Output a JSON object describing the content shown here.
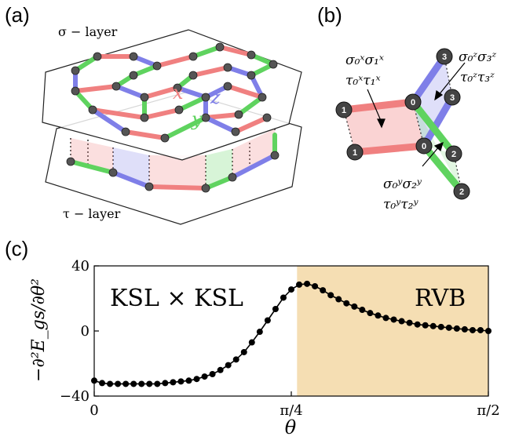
{
  "panels": {
    "a": {
      "label": "(a)",
      "sigma_layer": "σ − layer",
      "tau_layer": "τ − layer",
      "bond_labels": {
        "x": "x",
        "y": "y",
        "z": "z"
      }
    },
    "b": {
      "label": "(b)",
      "site_labels": [
        "0",
        "0",
        "1",
        "1",
        "2",
        "2",
        "3",
        "3"
      ],
      "term_x": {
        "line1": "σ₀ˣσ₁ˣ",
        "line2": "τ₀ˣτ₁ˣ"
      },
      "term_z": {
        "line1": "σ₀ᶻσ₃ᶻ",
        "line2": "τ₀ᶻτ₃ᶻ"
      },
      "term_y": {
        "line1": "σ₀ʸσ₂ʸ",
        "line2": "τ₀ʸτ₂ʸ"
      }
    },
    "c": {
      "label": "(c)",
      "ylabel": "−∂²E_gs/∂θ²",
      "xlabel": "θ",
      "region_left_label": "KSL × KSL",
      "region_right_label": "RVB"
    }
  },
  "colors": {
    "x_bond": "#f08080",
    "y_bond": "#5fd35f",
    "z_bond": "#7f7fe8",
    "site": "#555555",
    "rvb_region": "#f5deb3",
    "curve": "#000000"
  },
  "chart_data": {
    "type": "line",
    "xlabel": "θ",
    "ylabel": "−∂²E_gs/∂θ²",
    "xlim": [
      0,
      1.5708
    ],
    "ylim": [
      -40,
      40
    ],
    "xticks": [
      {
        "value": 0,
        "label": "0"
      },
      {
        "value": 0.7854,
        "label": "π/4"
      },
      {
        "value": 1.5708,
        "label": "π/2"
      }
    ],
    "yticks": [
      {
        "value": -40,
        "label": "−40"
      },
      {
        "value": 0,
        "label": "0"
      },
      {
        "value": 40,
        "label": "40"
      }
    ],
    "shaded_region": {
      "x_from": 0.8083,
      "x_to": 1.5708
    },
    "x": [
      0.0,
      0.0314,
      0.0628,
      0.0942,
      0.1257,
      0.1571,
      0.1885,
      0.2199,
      0.2513,
      0.2827,
      0.3142,
      0.3456,
      0.377,
      0.4084,
      0.4398,
      0.4712,
      0.5027,
      0.5341,
      0.5655,
      0.5969,
      0.6283,
      0.6597,
      0.6912,
      0.7226,
      0.754,
      0.7854,
      0.8168,
      0.8482,
      0.8796,
      0.9111,
      0.9425,
      0.9739,
      1.0053,
      1.0367,
      1.0681,
      1.0996,
      1.131,
      1.1624,
      1.1938,
      1.2252,
      1.2566,
      1.2881,
      1.3195,
      1.3509,
      1.3823,
      1.4137,
      1.4451,
      1.4765,
      1.508,
      1.5394,
      1.5708
    ],
    "y": [
      -30.5,
      -32.0,
      -32.5,
      -32.5,
      -32.5,
      -32.5,
      -32.5,
      -32.5,
      -32.5,
      -32.0,
      -31.5,
      -31.0,
      -30.5,
      -29.5,
      -28.0,
      -26.5,
      -24.0,
      -21.0,
      -17.5,
      -13.0,
      -7.0,
      -0.5,
      6.5,
      13.5,
      20.5,
      25.5,
      28.5,
      29.0,
      27.5,
      25.0,
      22.0,
      19.5,
      17.0,
      15.0,
      13.0,
      11.0,
      9.5,
      8.0,
      7.0,
      6.0,
      5.0,
      4.0,
      3.5,
      3.0,
      2.5,
      2.0,
      1.5,
      1.0,
      0.5,
      0.5,
      0.0
    ]
  }
}
